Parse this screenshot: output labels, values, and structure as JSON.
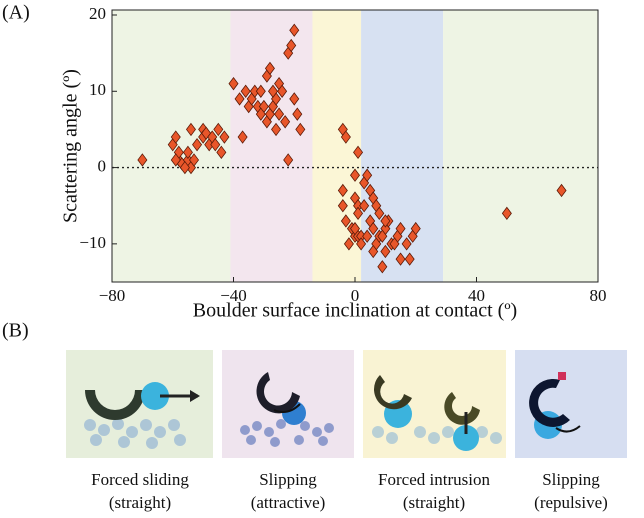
{
  "chart_data": {
    "type": "scatter",
    "panel_label": "(A)",
    "x_label": "Boulder surface inclination at contact (º)",
    "y_label": "Scattering angle (º)",
    "xlim": [
      -80,
      80
    ],
    "ylim": [
      -15,
      20
    ],
    "xticks": [
      {
        "value": -80,
        "label": "−80"
      },
      {
        "value": -40,
        "label": "−40"
      },
      0,
      40,
      80
    ],
    "yticks": [
      {
        "value": -10,
        "label": "−10"
      },
      0,
      10,
      20
    ],
    "hline": 0,
    "bands": [
      {
        "xlim": [
          -80,
          -41
        ],
        "color": "#eef4e4"
      },
      {
        "xlim": [
          -41,
          -14
        ],
        "color": "#f3e6ee"
      },
      {
        "xlim": [
          -14,
          2
        ],
        "color": "#fbf6d6"
      },
      {
        "xlim": [
          2,
          29
        ],
        "color": "#d7e1f2"
      },
      {
        "xlim": [
          29,
          80
        ],
        "color": "#eef4e4"
      }
    ],
    "series": [
      {
        "color": "#e8562a",
        "x": [
          -70,
          -60,
          -59,
          -58,
          -57,
          -58,
          -55,
          -54,
          -55,
          -53,
          -54,
          -52,
          -50,
          -50,
          -49,
          -48,
          -47,
          -45,
          -46,
          -44,
          -43,
          -56,
          -59,
          -40,
          -37,
          -38,
          -36,
          -35,
          -34,
          -33,
          -32,
          -31,
          -30,
          -29,
          -29,
          -28,
          -28,
          -27,
          -26,
          -25,
          -25,
          -24,
          -23,
          -22,
          -21,
          -20,
          -22,
          -20,
          -18,
          -19,
          -31,
          -27,
          -26,
          -4,
          -3,
          -4,
          -4,
          -3,
          -2,
          -1,
          1,
          0,
          0,
          1,
          1,
          0,
          1,
          2,
          2,
          0,
          3,
          4,
          5,
          5,
          6,
          6,
          7,
          7,
          8,
          9,
          8,
          10,
          11,
          12,
          14,
          15,
          15,
          17,
          19,
          20,
          9,
          10,
          13,
          6,
          4,
          3,
          10,
          18,
          50,
          68
        ],
        "y": [
          1,
          3,
          4,
          1,
          0.5,
          2,
          1,
          0,
          2,
          1,
          5,
          3,
          5,
          4,
          4.5,
          3,
          4,
          5,
          3,
          2,
          4,
          0,
          1,
          11,
          4,
          9,
          10,
          8,
          9,
          10,
          8,
          10,
          8,
          6,
          12,
          7,
          13,
          8,
          9,
          7,
          11,
          10,
          6,
          15,
          16,
          18,
          1,
          9,
          5,
          7,
          7,
          10,
          5,
          5,
          4,
          -3,
          -5,
          -7,
          -10,
          -8,
          2,
          -1,
          -4,
          -5,
          -6,
          -9,
          -9,
          -9,
          -10,
          -8,
          -2,
          -1,
          -3,
          -7,
          -4,
          -8,
          -5,
          -10,
          -9,
          -13,
          -6,
          -8,
          -7,
          -10,
          -9,
          -12,
          -8,
          -10,
          -9,
          -8,
          -9,
          -11,
          -10,
          -11,
          -9,
          -5,
          -7,
          -12,
          -6,
          -3
        ]
      }
    ]
  },
  "panel_b": {
    "label": "(B)",
    "items": [
      {
        "line1": "Forced sliding",
        "line2": "(straight)"
      },
      {
        "line1": "Slipping",
        "line2": "(attractive)"
      },
      {
        "line1": "Forced intrusion",
        "line2": "(straight)"
      },
      {
        "line1": "Slipping",
        "line2": "(repulsive)"
      }
    ]
  }
}
